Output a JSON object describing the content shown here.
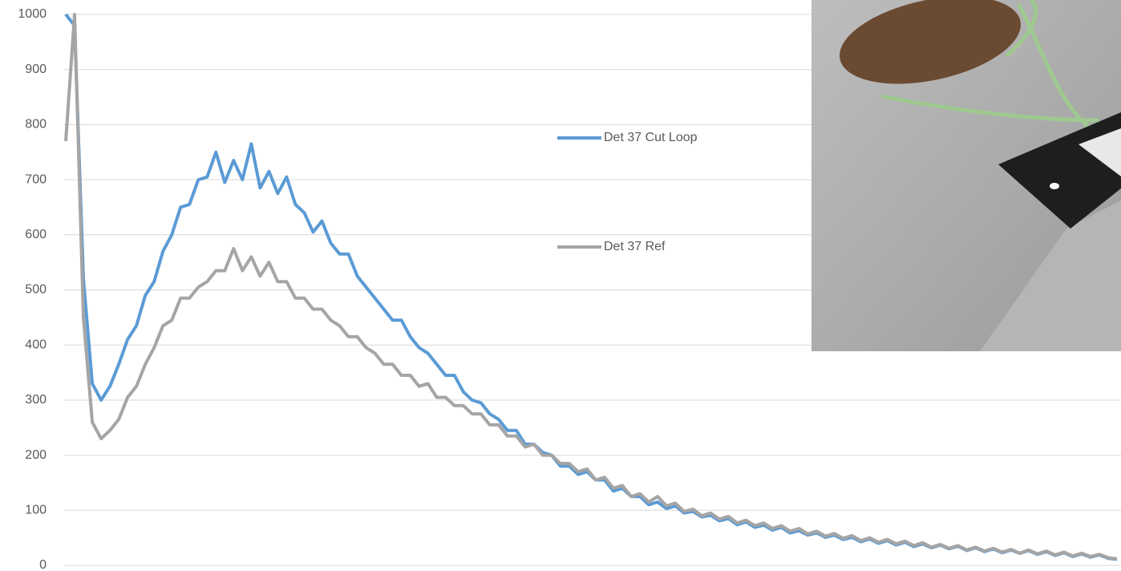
{
  "chart_data": {
    "type": "line",
    "ylim": [
      0,
      1000
    ],
    "yticks": [
      0,
      100,
      200,
      300,
      400,
      500,
      600,
      700,
      800,
      900,
      1000
    ],
    "grid": true,
    "legend": "right",
    "series": [
      {
        "name": "Det 37 Cut Loop",
        "color": "#5b9bd5",
        "values": [
          1000,
          980,
          520,
          330,
          300,
          325,
          365,
          410,
          435,
          490,
          515,
          570,
          600,
          650,
          655,
          700,
          705,
          750,
          695,
          735,
          700,
          765,
          685,
          715,
          675,
          705,
          655,
          640,
          605,
          625,
          585,
          565,
          565,
          525,
          505,
          485,
          465,
          445,
          445,
          415,
          395,
          385,
          365,
          345,
          345,
          315,
          300,
          295,
          275,
          265,
          245,
          245,
          220,
          220,
          205,
          200,
          180,
          180,
          165,
          170,
          155,
          155,
          135,
          140,
          125,
          125,
          110,
          115,
          103,
          108,
          95,
          98,
          88,
          91,
          81,
          85,
          74,
          79,
          69,
          73,
          64,
          69,
          59,
          63,
          55,
          59,
          51,
          55,
          47,
          51,
          43,
          48,
          40,
          45,
          37,
          42,
          34,
          39,
          32,
          37,
          30,
          35,
          27,
          32,
          25,
          30,
          23,
          28,
          22,
          27,
          20,
          25,
          18,
          23,
          16,
          21,
          15,
          19,
          13,
          11
        ]
      },
      {
        "name": "Det 37 Ref",
        "color": "#a5a5a5",
        "values": [
          770,
          1000,
          450,
          260,
          230,
          245,
          265,
          305,
          325,
          365,
          395,
          435,
          445,
          485,
          485,
          505,
          515,
          535,
          535,
          575,
          535,
          560,
          525,
          550,
          515,
          515,
          485,
          485,
          465,
          465,
          445,
          435,
          415,
          415,
          395,
          385,
          365,
          365,
          345,
          345,
          325,
          330,
          305,
          305,
          290,
          290,
          275,
          275,
          255,
          255,
          235,
          235,
          215,
          220,
          200,
          200,
          185,
          185,
          170,
          175,
          155,
          160,
          140,
          145,
          125,
          130,
          115,
          125,
          108,
          113,
          98,
          102,
          90,
          95,
          84,
          89,
          77,
          82,
          72,
          77,
          67,
          72,
          62,
          67,
          57,
          62,
          53,
          58,
          49,
          54,
          45,
          50,
          42,
          47,
          39,
          44,
          36,
          41,
          33,
          38,
          31,
          36,
          28,
          33,
          26,
          31,
          24,
          29,
          22,
          28,
          21,
          26,
          19,
          24,
          17,
          22,
          16,
          20,
          14,
          12
        ]
      }
    ]
  }
}
